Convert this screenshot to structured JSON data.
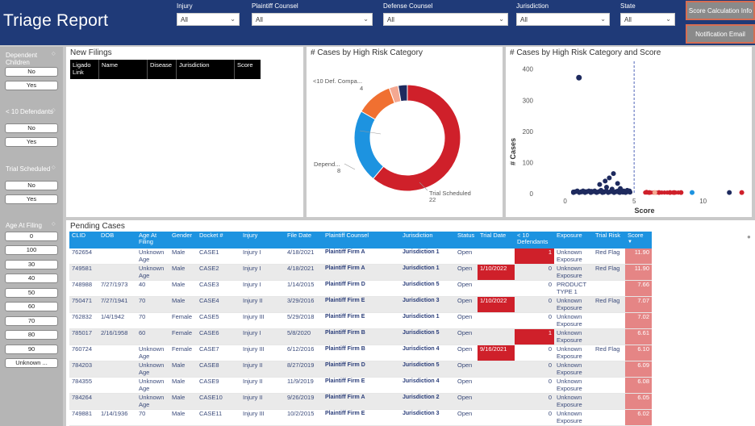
{
  "header": {
    "title": "Triage Report",
    "filters": [
      {
        "label": "Injury",
        "value": "All"
      },
      {
        "label": "Plaintiff Counsel",
        "value": "All"
      },
      {
        "label": "Defense Counsel",
        "value": "All"
      },
      {
        "label": "Jurisdiction",
        "value": "All"
      },
      {
        "label": "State",
        "value": "All"
      }
    ],
    "buttons": {
      "score_info": "Score Calculation Info",
      "notify": "Notification Email"
    }
  },
  "slicers": {
    "dependent_children": {
      "title": "Dependent Children",
      "options": [
        "No",
        "Yes"
      ]
    },
    "lt10_defendants": {
      "title": "< 10 Defendants",
      "options": [
        "No",
        "Yes"
      ]
    },
    "trial_scheduled": {
      "title": "Trial Scheduled",
      "options": [
        "No",
        "Yes"
      ]
    },
    "age_at_filing": {
      "title": "Age At Filing",
      "options": [
        "0",
        "100",
        "30",
        "40",
        "50",
        "60",
        "70",
        "80",
        "90",
        "Unknown ..."
      ]
    }
  },
  "new_filings": {
    "title": "New Filings",
    "columns": [
      "Ligado Link",
      "Name",
      "Disease",
      "Jurisdiction",
      "Score"
    ]
  },
  "donut": {
    "title": "# Cases by High Risk Category",
    "labels": {
      "def": "<10 Def. Compa...",
      "def_val": "4",
      "dep": "Depend...",
      "dep_val": "8",
      "trial": "Trial Scheduled",
      "trial_val": "22"
    }
  },
  "scatter": {
    "title": "# Cases by High Risk Category and Score",
    "xlabel": "Score",
    "ylabel": "# Cases",
    "yticks": [
      "0",
      "100",
      "200",
      "300",
      "400"
    ],
    "xticks": [
      "0",
      "5",
      "10"
    ]
  },
  "chart_data": [
    {
      "type": "pie",
      "title": "# Cases by High Risk Category",
      "slices": [
        {
          "label": "Trial Scheduled",
          "value": 22,
          "color": "#cf202a"
        },
        {
          "label": "Depend...",
          "value": 8,
          "color": "#1d93e0"
        },
        {
          "label": "<10 Def. Compa...",
          "value": 4,
          "color": "#f07031"
        },
        {
          "label": "",
          "value": 1,
          "color": "#f4a891"
        },
        {
          "label": "",
          "value": 1,
          "color": "#1e2a5e"
        }
      ]
    },
    {
      "type": "scatter",
      "title": "# Cases by High Risk Category and Score",
      "xlabel": "Score",
      "ylabel": "# Cases",
      "xlim": [
        -1.5,
        13
      ],
      "ylim": [
        0,
        420
      ],
      "reference_line_x": 5,
      "series": [
        {
          "color": "#1e2a5e",
          "points": [
            [
              1.0,
              370
            ],
            [
              3.5,
              62
            ],
            [
              3.2,
              48
            ],
            [
              2.9,
              38
            ],
            [
              3.8,
              30
            ],
            [
              2.5,
              27
            ],
            [
              3.0,
              18
            ],
            [
              3.4,
              12
            ],
            [
              4.0,
              14
            ],
            [
              4.5,
              8
            ],
            [
              2.6,
              8
            ],
            [
              1.9,
              5
            ],
            [
              1.5,
              4
            ],
            [
              2.2,
              3
            ],
            [
              3.3,
              4
            ],
            [
              3.7,
              4
            ],
            [
              4.2,
              2
            ],
            [
              1.2,
              3
            ],
            [
              0.6,
              3
            ],
            [
              2.8,
              2
            ],
            [
              3.9,
              2
            ],
            [
              4.7,
              2
            ],
            [
              11.9,
              1
            ]
          ]
        },
        {
          "color": "#cf202a",
          "points": [
            [
              5.9,
              2
            ],
            [
              6.1,
              1
            ],
            [
              6.8,
              1
            ],
            [
              7.6,
              1
            ],
            [
              7.9,
              1
            ],
            [
              8.4,
              1
            ],
            [
              12.8,
              1
            ]
          ]
        },
        {
          "color": "#1d93e0",
          "points": [
            [
              9.2,
              1
            ]
          ]
        },
        {
          "color": "#f4a891",
          "points": [
            [
              6.5,
              1
            ]
          ]
        }
      ]
    }
  ],
  "pending": {
    "title": "Pending Cases",
    "columns": [
      "CLID",
      "DOB",
      "Age At Filing",
      "Gender",
      "Docket #",
      "Injury",
      "File Date",
      "Plaintiff Counsel",
      "Jurisdiction",
      "Status",
      "Trial Date",
      "< 10 Defendants",
      "Exposure",
      "Trial Risk",
      "Score"
    ],
    "rows": [
      [
        "762654",
        "",
        "Unknown Age",
        "Male",
        "CASE1",
        "Injury I",
        "4/18/2021",
        "Plaintiff Firm A",
        "Jurisdiction 1",
        "Open",
        "",
        "1",
        "Unknown Exposure",
        "Red Flag",
        "11.90"
      ],
      [
        "749581",
        "",
        "Unknown Age",
        "Male",
        "CASE2",
        "Injury I",
        "4/18/2021",
        "Plaintiff Firm A",
        "Jurisdiction 1",
        "Open",
        "1/10/2022",
        "0",
        "Unknown Exposure",
        "Red Flag",
        "11.90"
      ],
      [
        "748988",
        "7/27/1973",
        "40",
        "Male",
        "CASE3",
        "Injury I",
        "1/14/2015",
        "Plaintiff Firm D",
        "Jurisdiction 5",
        "Open",
        "",
        "0",
        "PRODUCT TYPE 1",
        "",
        "7.66"
      ],
      [
        "750471",
        "7/27/1941",
        "70",
        "Male",
        "CASE4",
        "Injury II",
        "3/29/2016",
        "Plaintiff Firm E",
        "Jurisdiction 3",
        "Open",
        "1/10/2022",
        "0",
        "Unknown Exposure",
        "Red Flag",
        "7.07"
      ],
      [
        "762832",
        "1/4/1942",
        "70",
        "Female",
        "CASE5",
        "Injury III",
        "5/29/2018",
        "Plaintiff Firm E",
        "Jurisdiction 1",
        "Open",
        "",
        "0",
        "Unknown Exposure",
        "",
        "7.02"
      ],
      [
        "785017",
        "2/16/1958",
        "60",
        "Female",
        "CASE6",
        "Injury I",
        "5/8/2020",
        "Plaintiff Firm B",
        "Jurisdiction 5",
        "Open",
        "",
        "1",
        "Unknown Exposure",
        "",
        "6.61"
      ],
      [
        "760724",
        "",
        "Unknown Age",
        "Female",
        "CASE7",
        "Injury III",
        "6/12/2016",
        "Plaintiff Firm B",
        "Jurisdiction 4",
        "Open",
        "9/16/2021",
        "0",
        "Unknown Exposure",
        "Red Flag",
        "6.10"
      ],
      [
        "784203",
        "",
        "Unknown Age",
        "Male",
        "CASE8",
        "Injury II",
        "8/27/2019",
        "Plaintiff Firm D",
        "Jurisdiction 5",
        "Open",
        "",
        "0",
        "Unknown Exposure",
        "",
        "6.09"
      ],
      [
        "784355",
        "",
        "Unknown Age",
        "Male",
        "CASE9",
        "Injury II",
        "11/9/2019",
        "Plaintiff Firm E",
        "Jurisdiction 4",
        "Open",
        "",
        "0",
        "Unknown Exposure",
        "",
        "6.08"
      ],
      [
        "784264",
        "",
        "Unknown Age",
        "Male",
        "CASE10",
        "Injury II",
        "9/26/2019",
        "Plaintiff Firm A",
        "Jurisdiction 2",
        "Open",
        "",
        "0",
        "Unknown Exposure",
        "",
        "6.05"
      ],
      [
        "749881",
        "1/14/1936",
        "70",
        "Male",
        "CASE11",
        "Injury III",
        "10/2/2015",
        "Plaintiff Firm E",
        "Jurisdiction 3",
        "Open",
        "",
        "0",
        "Unknown Exposure",
        "",
        "6.02"
      ]
    ]
  },
  "colors": {
    "header": "#1f3a78",
    "table_header": "#1d93e0",
    "flag_red": "#cf202a",
    "score_bg": "#e58585"
  }
}
